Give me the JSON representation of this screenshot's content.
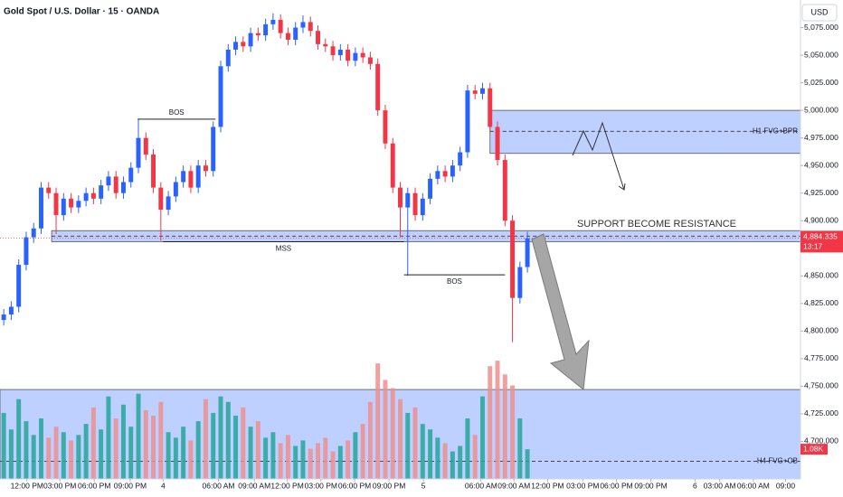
{
  "chart_data": {
    "type": "candlestick",
    "title": "Gold Spot / U.S. Dollar · 15 · OANDA",
    "currency": "USD",
    "xlim": [
      -0.5,
      106.5
    ],
    "ylim": [
      4666,
      5100
    ],
    "vlim": [
      0,
      4600
    ],
    "grid": false,
    "up_color": "#2962ff",
    "down_color": "#f23645",
    "volume_up_color": "#26a69a",
    "volume_down_color": "#ef8f8f",
    "zone_color": "#2962ff",
    "yticks": [
      {
        "value": 4700,
        "label": "4,700.000"
      },
      {
        "value": 4725,
        "label": "4,725.000"
      },
      {
        "value": 4750,
        "label": "4,750.000"
      },
      {
        "value": 4775,
        "label": "4,775.000"
      },
      {
        "value": 4800,
        "label": "4,800.000"
      },
      {
        "value": 4825,
        "label": "4,825.000"
      },
      {
        "value": 4850,
        "label": "4,850.000"
      },
      {
        "value": 4875,
        "label": "4,875.000"
      },
      {
        "value": 4900,
        "label": "4,900.000"
      },
      {
        "value": 4925,
        "label": "4,925.000"
      },
      {
        "value": 4950,
        "label": "4,950.000"
      },
      {
        "value": 4975,
        "label": "4,975.000"
      },
      {
        "value": 5000,
        "label": "5,000.000"
      },
      {
        "value": 5025,
        "label": "5,025.000"
      },
      {
        "value": 5050,
        "label": "5,050.000"
      },
      {
        "value": 5075,
        "label": "5,075.000"
      }
    ],
    "xticks": [
      {
        "value": 3.1,
        "label": "12:00 PM"
      },
      {
        "value": 7.5,
        "label": "03:00 PM"
      },
      {
        "value": 12.1,
        "label": "06:00 PM"
      },
      {
        "value": 16.9,
        "label": "09:00 PM"
      },
      {
        "value": 21.3,
        "label": "4"
      },
      {
        "value": 28.7,
        "label": "06:00 AM"
      },
      {
        "value": 33.5,
        "label": "09:00 AM"
      },
      {
        "value": 37.9,
        "label": "12:00 PM"
      },
      {
        "value": 42.4,
        "label": "03:00 PM"
      },
      {
        "value": 46.9,
        "label": "06:00 PM"
      },
      {
        "value": 51.5,
        "label": "09:00 PM"
      },
      {
        "value": 56.1,
        "label": "5"
      },
      {
        "value": 63.8,
        "label": "06:00 AM"
      },
      {
        "value": 68.2,
        "label": "09:00 AM"
      },
      {
        "value": 72.7,
        "label": "12:00 PM"
      },
      {
        "value": 77.4,
        "label": "03:00 PM"
      },
      {
        "value": 81.9,
        "label": "06:00 PM"
      },
      {
        "value": 86.5,
        "label": "09:00 PM"
      },
      {
        "value": 92.4,
        "label": "6"
      },
      {
        "value": 95.7,
        "label": "03:00 AM"
      },
      {
        "value": 100.2,
        "label": "06:00 AM"
      },
      {
        "value": 104.5,
        "label": "09:00"
      }
    ],
    "open": [
      4810,
      4815,
      4822,
      4860,
      4885,
      4893,
      4930,
      4925,
      4905,
      4920,
      4912,
      4918,
      4925,
      4920,
      4932,
      4940,
      4925,
      4935,
      4948,
      4975,
      4960,
      4930,
      4910,
      4922,
      4935,
      4945,
      4930,
      4950,
      4945,
      4985,
      5040,
      5055,
      5062,
      5058,
      5070,
      5068,
      5078,
      5082,
      5070,
      5064,
      5075,
      5080,
      5072,
      5060,
      5058,
      5050,
      5055,
      5045,
      5052,
      5048,
      5042,
      5000,
      4970,
      4930,
      4912,
      4925,
      4905,
      4920,
      4938,
      4945,
      4940,
      4950,
      4962,
      5018,
      5015,
      5020,
      4985,
      4955,
      4900,
      4830,
      4858
    ],
    "high": [
      4820,
      4827,
      4865,
      4890,
      4898,
      4935,
      4935,
      4930,
      4925,
      4925,
      4923,
      4930,
      4930,
      4937,
      4945,
      4945,
      4940,
      4953,
      4992,
      4980,
      4965,
      4935,
      4927,
      4940,
      4950,
      4950,
      4955,
      4955,
      4990,
      5045,
      5060,
      5067,
      5067,
      5075,
      5075,
      5083,
      5088,
      5087,
      5075,
      5080,
      5086,
      5085,
      5077,
      5065,
      5063,
      5060,
      5060,
      5057,
      5057,
      5053,
      5047,
      5005,
      4975,
      4935,
      4930,
      4930,
      4925,
      4943,
      4950,
      4950,
      4955,
      4967,
      5023,
      5023,
      5025,
      5025,
      4990,
      4960,
      4905,
      4863,
      4890
    ],
    "low": [
      4805,
      4810,
      4817,
      4855,
      4880,
      4888,
      4920,
      4888,
      4900,
      4907,
      4907,
      4913,
      4915,
      4915,
      4927,
      4920,
      4920,
      4930,
      4943,
      4955,
      4925,
      4882,
      4905,
      4917,
      4930,
      4925,
      4925,
      4940,
      4940,
      4980,
      5035,
      5050,
      5053,
      5053,
      5063,
      5063,
      5073,
      5065,
      5059,
      5059,
      5070,
      5067,
      5055,
      5053,
      5045,
      5045,
      5040,
      5040,
      5043,
      5037,
      4995,
      4965,
      4925,
      4885,
      4850,
      4900,
      4900,
      4915,
      4933,
      4935,
      4935,
      4945,
      4957,
      5010,
      5010,
      4980,
      4950,
      4895,
      4790,
      4825,
      4853
    ],
    "close": [
      4815,
      4822,
      4860,
      4885,
      4893,
      4930,
      4925,
      4905,
      4920,
      4912,
      4918,
      4925,
      4920,
      4932,
      4940,
      4925,
      4935,
      4948,
      4975,
      4960,
      4930,
      4910,
      4922,
      4935,
      4945,
      4930,
      4950,
      4945,
      4985,
      5040,
      5055,
      5062,
      5058,
      5070,
      5068,
      5078,
      5082,
      5070,
      5064,
      5075,
      5080,
      5072,
      5060,
      5058,
      5050,
      5055,
      5045,
      5052,
      5048,
      5042,
      5000,
      4970,
      4930,
      4912,
      4925,
      4905,
      4920,
      4938,
      4945,
      4940,
      4950,
      4962,
      5018,
      5015,
      5020,
      4985,
      4955,
      4900,
      4830,
      4858,
      4884
    ],
    "volume": [
      2400,
      1800,
      2900,
      2100,
      1600,
      2200,
      1500,
      1900,
      1700,
      1400,
      1600,
      2000,
      2600,
      1800,
      3000,
      2200,
      2700,
      1900,
      3100,
      2500,
      2300,
      2800,
      1700,
      1500,
      1900,
      1400,
      2100,
      2900,
      2400,
      3000,
      2800,
      2300,
      2600,
      1900,
      2100,
      1500,
      1700,
      1300,
      1600,
      1200,
      1400,
      1100,
      1300,
      1500,
      1000,
      1200,
      1400,
      1700,
      2000,
      2800,
      4200,
      3600,
      3300,
      2900,
      2400,
      2600,
      2000,
      1800,
      1500,
      1300,
      1000,
      1200,
      2200,
      1600,
      3000,
      4100,
      4300,
      3800,
      3400,
      2200,
      1080
    ],
    "volume_last_label": "1.08K",
    "last_price": {
      "value": 4884.335,
      "label": "4,884.335"
    },
    "countdown": "13:17",
    "zones": [
      {
        "label": "H1 FVG+BPR",
        "top": 5000,
        "bottom": 4961,
        "line": 4981,
        "x_start": 65,
        "label_position": "right"
      },
      {
        "label": "SUPPORT BECOME RESISTANCE",
        "top": 4891,
        "bottom": 4881,
        "line": 4886,
        "x_start": 6.4,
        "label_position": "above"
      },
      {
        "label": "H4 FVG+OB",
        "top": 4747,
        "bottom": 4666,
        "line": 4682,
        "x_start": -0.5,
        "label_position": "right"
      }
    ],
    "levels": [
      {
        "label": "BOS",
        "price": 4992,
        "x_start": 17.9,
        "x_end": 28.3,
        "label_side": "above"
      },
      {
        "label": "MSS",
        "price": 4881,
        "x_start": 21.3,
        "x_end": 53.5,
        "label_side": "below"
      },
      {
        "label": "BOS",
        "price": 4851,
        "x_start": 53.5,
        "x_end": 67,
        "label_side": "below"
      }
    ]
  }
}
